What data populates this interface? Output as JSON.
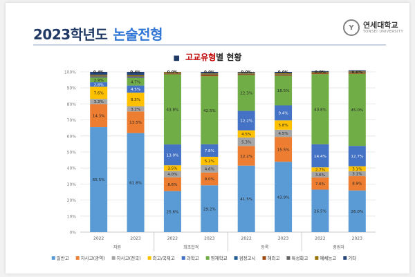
{
  "header": {
    "title_main": "2023학년도",
    "title_accent": "논술전형",
    "logo_mark": "Y",
    "logo_name": "연세대학교",
    "logo_sub": "YONSEI UNIVERSITY"
  },
  "chart_title": {
    "bullet": "■",
    "highlight": "고교유형",
    "rest": "별 현황"
  },
  "colors": {
    "title": "#1f3864",
    "accent": "#2e75d6",
    "highlight": "#c00000"
  },
  "chart_data": {
    "type": "bar",
    "stacked": true,
    "title": "고교유형별 현황",
    "ylim": [
      0,
      100
    ],
    "yticks": [
      "0%",
      "10%",
      "20%",
      "30%",
      "40%",
      "50%",
      "60%",
      "70%",
      "80%",
      "90%",
      "100%"
    ],
    "categories": [
      "2022",
      "2023",
      "2022",
      "2023",
      "2022",
      "2023",
      "2022",
      "2023"
    ],
    "groups": [
      {
        "name": "지원",
        "count": 2
      },
      {
        "name": "최초합격",
        "count": 2
      },
      {
        "name": "등록",
        "count": 2
      },
      {
        "name": "충원자",
        "count": 2
      }
    ],
    "series": [
      {
        "name": "일반고",
        "color": "#5b9bd5",
        "values": [
          65.5,
          61.8,
          25.6,
          29.2,
          41.5,
          43.9,
          26.5,
          26.0
        ],
        "labels": [
          "65.5%",
          "61.8%",
          "25.6%",
          "29.2%",
          "41.5%",
          "43.9%",
          "26.5%",
          "26.0%"
        ]
      },
      {
        "name": "자사고(광역)",
        "color": "#ed7d31",
        "values": [
          14.3,
          13.5,
          8.6,
          8.0,
          12.2,
          15.5,
          7.6,
          8.9
        ],
        "labels": [
          "14.3%",
          "13.5%",
          "8.6%",
          "8.0%",
          "12.2%",
          "15.5%",
          "7.6%",
          "8.9%"
        ]
      },
      {
        "name": "자사고(전국)",
        "color": "#a5a5a5",
        "values": [
          3.3,
          3.2,
          4.0,
          4.6,
          5.3,
          4.5,
          3.6,
          3.1
        ],
        "labels": [
          "3.3%",
          "3.2%",
          "4.0%",
          "4.6%",
          "5.3%",
          "4.5%",
          "3.6%",
          "3.1%"
        ]
      },
      {
        "name": "외고/국제고",
        "color": "#ffc000",
        "values": [
          7.6,
          8.5,
          3.5,
          5.2,
          4.5,
          5.8,
          2.7,
          3.1
        ],
        "labels": [
          "7.6%",
          "8.5%",
          "3.5%",
          "5.2%",
          "4.5%",
          "5.8%",
          "2.7%",
          "3.1%"
        ]
      },
      {
        "name": "과학고",
        "color": "#4472c4",
        "values": [
          2.8,
          4.5,
          13.0,
          7.8,
          12.2,
          9.4,
          14.4,
          12.7
        ],
        "labels": [
          "2.8%",
          "4.5%",
          "13.0%",
          "7.8%",
          "12.2%",
          "9.4%",
          "14.4%",
          "12.7%"
        ]
      },
      {
        "name": "영재학교",
        "color": "#70ad47",
        "values": [
          2.9,
          4.7,
          43.8,
          42.5,
          22.3,
          18.5,
          43.8,
          45.0
        ],
        "labels": [
          "2.9%",
          "4.7%",
          "43.8%",
          "42.5%",
          "22.3%",
          "18.5%",
          "43.8%",
          "45.0%"
        ]
      },
      {
        "name": "검정고시",
        "color": "#255e91",
        "values": [
          0.4,
          0.4,
          0.0,
          0.0,
          0.0,
          0.0,
          0.0,
          0.0
        ],
        "labels": [
          "0.4%",
          "0.4%",
          "0.0%",
          "0.0%",
          "0.0%",
          "0.0%",
          "0.0%",
          "0.0%"
        ]
      },
      {
        "name": "해외고",
        "color": "#9e480e",
        "values": [
          0.3,
          0.3,
          0.5,
          0.7,
          0.5,
          0.5,
          0.5,
          0.5
        ],
        "labels": [
          "",
          "",
          "",
          "",
          "",
          "",
          "",
          ""
        ]
      },
      {
        "name": "특성화고",
        "color": "#636363",
        "values": [
          0.5,
          0.5,
          0.5,
          0.5,
          0.5,
          0.5,
          0.5,
          0.5
        ],
        "labels": [
          "",
          "",
          "",
          "",
          "",
          "",
          "",
          ""
        ]
      },
      {
        "name": "예체능고",
        "color": "#997300",
        "values": [
          0.5,
          0.5,
          0.5,
          0.5,
          0.5,
          0.5,
          0.5,
          0.5
        ],
        "labels": [
          "",
          "",
          "",
          "",
          "",
          "",
          "",
          ""
        ]
      },
      {
        "name": "기타",
        "color": "#264478",
        "values": [
          1.9,
          2.1,
          0.0,
          1.0,
          0.5,
          0.9,
          0.4,
          0.6
        ],
        "labels": [
          "",
          "",
          "",
          "",
          "",
          "",
          "",
          ""
        ]
      }
    ],
    "top_labels": [
      "0.4%",
      "0.4%",
      "0.0%",
      "0.0%",
      "0.0%",
      "0.0%",
      "0.0%",
      "0.0%"
    ]
  }
}
